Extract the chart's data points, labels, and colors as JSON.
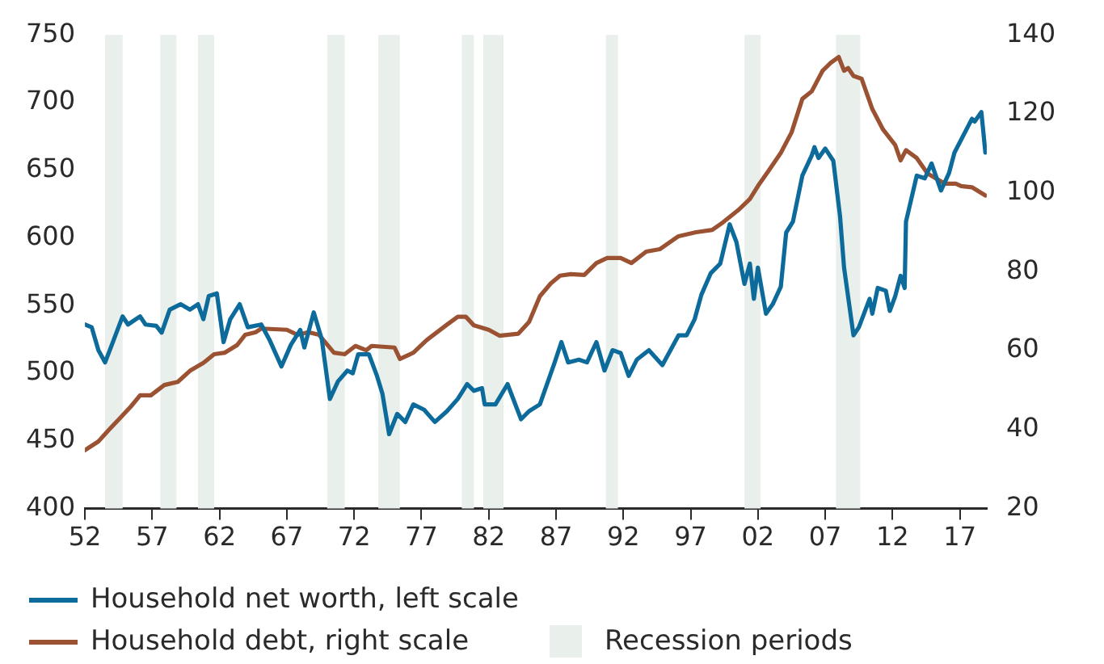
{
  "chart_data": {
    "type": "line",
    "xlim": [
      1952,
      2019
    ],
    "xticks": [
      {
        "value": 1952,
        "label": "52"
      },
      {
        "value": 1957,
        "label": "57"
      },
      {
        "value": 1962,
        "label": "62"
      },
      {
        "value": 1967,
        "label": "67"
      },
      {
        "value": 1972,
        "label": "72"
      },
      {
        "value": 1977,
        "label": "77"
      },
      {
        "value": 1982,
        "label": "82"
      },
      {
        "value": 1987,
        "label": "87"
      },
      {
        "value": 1992,
        "label": "92"
      },
      {
        "value": 1997,
        "label": "97"
      },
      {
        "value": 2002,
        "label": "02"
      },
      {
        "value": 2007,
        "label": "07"
      },
      {
        "value": 2012,
        "label": "12"
      },
      {
        "value": 2017,
        "label": "17"
      }
    ],
    "ylim": [
      400,
      750
    ],
    "yticks": [
      400,
      450,
      500,
      550,
      600,
      650,
      700,
      750
    ],
    "y2lim": [
      20,
      140
    ],
    "y2ticks": [
      20,
      40,
      60,
      80,
      100,
      120,
      140
    ],
    "grid": false,
    "legend": "bottom",
    "marker": "none",
    "line_style": "solid",
    "series": [
      {
        "name": "Household net worth, left scale",
        "color": "#0d6b9c",
        "axis": "y",
        "x": [
          1952.0,
          1952.5,
          1953.0,
          1953.5,
          1954.0,
          1954.8,
          1955.2,
          1956.1,
          1956.5,
          1957.3,
          1957.7,
          1958.3,
          1959.1,
          1959.8,
          1960.4,
          1960.8,
          1961.2,
          1961.8,
          1962.3,
          1962.8,
          1963.5,
          1964.1,
          1965.1,
          1965.7,
          1966.6,
          1967.3,
          1968.0,
          1968.3,
          1969.0,
          1969.6,
          1970.2,
          1970.8,
          1971.5,
          1971.9,
          1972.3,
          1973.1,
          1973.7,
          1974.1,
          1974.6,
          1975.2,
          1975.8,
          1976.4,
          1977.2,
          1978.0,
          1978.9,
          1979.7,
          1980.4,
          1980.9,
          1981.5,
          1981.7,
          1982.5,
          1983.4,
          1984.4,
          1985.0,
          1985.8,
          1986.9,
          1987.4,
          1987.9,
          1988.7,
          1989.3,
          1990.0,
          1990.6,
          1991.2,
          1991.8,
          1992.4,
          1993.0,
          1993.9,
          1994.9,
          1996.1,
          1996.7,
          1997.3,
          1997.8,
          1998.5,
          1999.2,
          1999.9,
          2000.4,
          2001.0,
          2001.4,
          2001.7,
          2002.0,
          2002.6,
          2003.1,
          2003.7,
          2004.1,
          2004.6,
          2005.3,
          2006.0,
          2006.2,
          2006.5,
          2007.0,
          2007.6,
          2008.1,
          2008.4,
          2009.1,
          2009.5,
          2010.3,
          2010.5,
          2010.9,
          2011.5,
          2011.8,
          2012.2,
          2012.6,
          2012.9,
          2013.0,
          2013.8,
          2014.4,
          2014.9,
          2015.6,
          2016.2,
          2016.6,
          2017.9,
          2018.1,
          2018.6,
          2018.9
        ],
        "values": [
          536,
          534,
          517,
          508,
          521,
          542,
          536,
          542,
          536,
          535,
          530,
          547,
          551,
          547,
          551,
          540,
          557,
          559,
          523,
          540,
          551,
          534,
          536,
          525,
          505,
          521,
          532,
          519,
          545,
          525,
          481,
          494,
          502,
          500,
          514,
          514,
          498,
          485,
          455,
          470,
          464,
          477,
          473,
          464,
          472,
          481,
          492,
          487,
          489,
          477,
          477,
          492,
          466,
          472,
          477,
          508,
          523,
          508,
          510,
          508,
          523,
          502,
          517,
          515,
          498,
          510,
          517,
          506,
          528,
          528,
          540,
          558,
          574,
          581,
          610,
          597,
          566,
          581,
          555,
          578,
          544,
          551,
          564,
          604,
          612,
          646,
          661,
          667,
          659,
          666,
          657,
          616,
          578,
          528,
          534,
          555,
          544,
          563,
          561,
          546,
          557,
          572,
          563,
          612,
          646,
          644,
          655,
          635,
          648,
          663,
          688,
          686,
          693,
          663
        ]
      },
      {
        "name": "Household debt, right scale",
        "color": "#9b5232",
        "axis": "y2",
        "x": [
          1952.0,
          1953.0,
          1953.8,
          1954.6,
          1955.4,
          1956.1,
          1956.9,
          1957.9,
          1958.9,
          1959.8,
          1960.8,
          1961.6,
          1962.4,
          1963.3,
          1963.9,
          1964.7,
          1965.1,
          1967.0,
          1967.8,
          1968.6,
          1969.4,
          1970.5,
          1971.3,
          1972.1,
          1972.9,
          1973.3,
          1975.0,
          1975.4,
          1976.4,
          1977.4,
          1978.9,
          1979.7,
          1980.3,
          1980.9,
          1982.0,
          1982.8,
          1984.2,
          1985.0,
          1985.8,
          1986.6,
          1987.3,
          1988.1,
          1989.1,
          1990.0,
          1990.8,
          1991.8,
          1992.6,
          1993.7,
          1994.7,
          1996.1,
          1997.4,
          1998.6,
          1999.4,
          2000.6,
          2001.4,
          2002.0,
          2002.8,
          2003.7,
          2004.5,
          2005.3,
          2006.0,
          2006.8,
          2007.4,
          2008.0,
          2008.4,
          2008.7,
          2009.1,
          2009.7,
          2010.5,
          2011.3,
          2012.2,
          2012.6,
          2013.0,
          2013.8,
          2014.6,
          2015.9,
          2016.7,
          2017.1,
          2017.9,
          2018.9
        ],
        "values": [
          34.8,
          37,
          40,
          42.9,
          45.8,
          48.7,
          48.7,
          51.3,
          52.1,
          54.9,
          56.9,
          59.1,
          59.5,
          61.4,
          64,
          64.7,
          65.6,
          65.3,
          64,
          64.7,
          64,
          59.5,
          59.1,
          61.2,
          60.1,
          61.2,
          60.8,
          57.9,
          59.5,
          62.7,
          66.6,
          68.6,
          68.6,
          66.4,
          65.3,
          63.8,
          64.3,
          67.3,
          73.8,
          77,
          79,
          79.4,
          79.2,
          82.2,
          83.5,
          83.5,
          82.2,
          85.1,
          85.7,
          89,
          90,
          90.6,
          92.5,
          95.8,
          98.4,
          101.7,
          105.6,
          110.1,
          115.3,
          123.8,
          125.7,
          130.9,
          132.9,
          134.4,
          130.9,
          131.6,
          129.6,
          128.9,
          121.2,
          116,
          112.1,
          108.2,
          110.8,
          108.8,
          104.9,
          102.3,
          102.3,
          101.7,
          101.4,
          99.3
        ]
      }
    ],
    "bands": [
      {
        "axis": "x",
        "from": 1953.5,
        "to": 1954.8,
        "label": "Recession periods",
        "color": "#e9efeb"
      },
      {
        "axis": "x",
        "from": 1957.6,
        "to": 1958.8,
        "color": "#e9efeb"
      },
      {
        "axis": "x",
        "from": 1960.4,
        "to": 1961.6,
        "color": "#e9efeb"
      },
      {
        "axis": "x",
        "from": 1970.0,
        "to": 1971.3,
        "color": "#e9efeb"
      },
      {
        "axis": "x",
        "from": 1973.8,
        "to": 1975.4,
        "color": "#e9efeb"
      },
      {
        "axis": "x",
        "from": 1980.0,
        "to": 1980.9,
        "color": "#e9efeb"
      },
      {
        "axis": "x",
        "from": 1981.6,
        "to": 1983.1,
        "color": "#e9efeb"
      },
      {
        "axis": "x",
        "from": 1990.7,
        "to": 1991.6,
        "color": "#e9efeb"
      },
      {
        "axis": "x",
        "from": 2001.0,
        "to": 2002.2,
        "color": "#e9efeb"
      },
      {
        "axis": "x",
        "from": 2007.8,
        "to": 2009.6,
        "color": "#e9efeb"
      }
    ]
  }
}
